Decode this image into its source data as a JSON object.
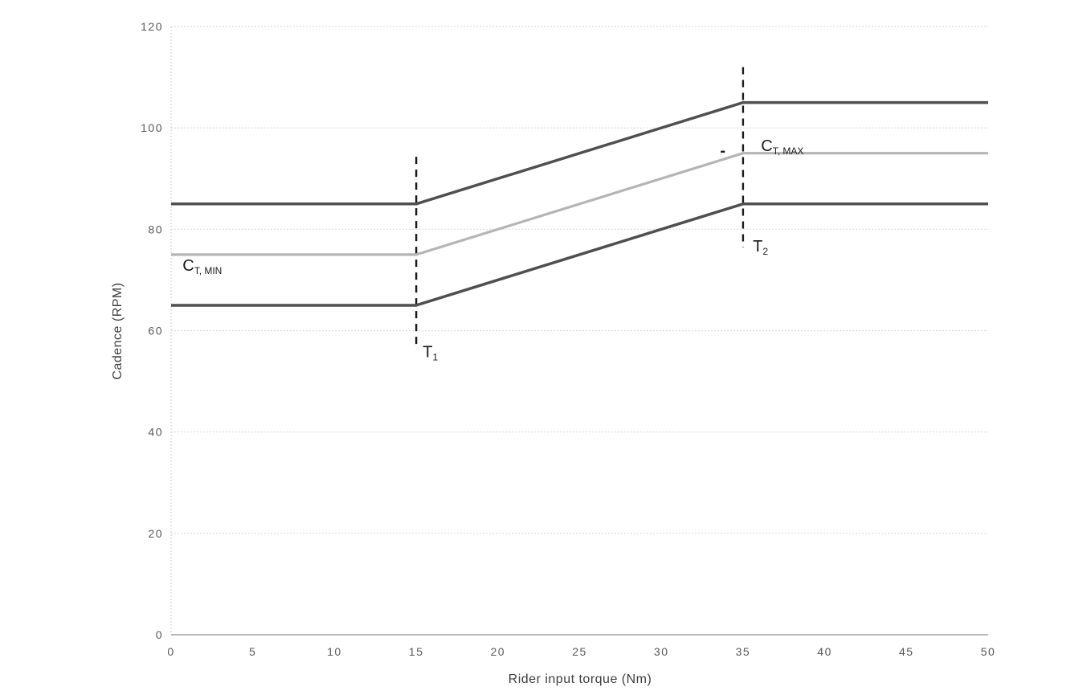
{
  "chart_data": {
    "type": "line",
    "title": "",
    "xlabel": "Rider input torque (Nm)",
    "ylabel": "Cadence (RPM)",
    "xlim": [
      0,
      50
    ],
    "ylim": [
      0,
      120
    ],
    "xticks": [
      0,
      5,
      10,
      15,
      20,
      25,
      30,
      35,
      40,
      45,
      50
    ],
    "yticks": [
      0,
      20,
      40,
      60,
      80,
      100,
      120
    ],
    "grid": "horizontal",
    "legend": "none",
    "series": [
      {
        "name": "upper-cadence-limit",
        "color": "#4f4f4f",
        "width": 3.5,
        "points": [
          [
            0,
            85
          ],
          [
            15,
            85
          ],
          [
            35,
            105
          ],
          [
            50,
            105
          ]
        ]
      },
      {
        "name": "target-cadence",
        "color": "#b5b5b5",
        "width": 3.2,
        "points": [
          [
            0,
            75
          ],
          [
            15,
            75
          ],
          [
            35,
            95
          ],
          [
            50,
            95
          ]
        ]
      },
      {
        "name": "lower-cadence-limit",
        "color": "#4f4f4f",
        "width": 3.5,
        "points": [
          [
            0,
            65
          ],
          [
            15,
            65
          ],
          [
            35,
            85
          ],
          [
            50,
            85
          ]
        ]
      }
    ],
    "guides": [
      {
        "name": "t1-threshold-line",
        "x": 15,
        "y_from": 57,
        "y_to": 94.3
      },
      {
        "name": "t2-threshold-line",
        "x": 35,
        "y_from": 76.4,
        "y_to": 112
      }
    ],
    "annotations": [
      {
        "name": "ct-min-label",
        "main": "C",
        "sub": "T, MIN",
        "x": 0.7,
        "y": 71.8,
        "bold": false
      },
      {
        "name": "ct-max-label",
        "main": "C",
        "sub": "T, MAX",
        "x": 36.1,
        "y": 95.4,
        "bold": false
      },
      {
        "name": "t1-label",
        "main": "T",
        "sub": "1",
        "x": 15.4,
        "y": 54.8,
        "bold": false
      },
      {
        "name": "t2-label",
        "main": "T",
        "sub": "2",
        "x": 35.6,
        "y": 75.6,
        "bold": false
      },
      {
        "name": "dash-mark",
        "main": "-",
        "sub": "",
        "x": 33.6,
        "y": 94.5,
        "bold": true
      }
    ],
    "style": {
      "grid_color": "#dcdcdc",
      "axis_line_color": "#a3a3a3",
      "tick_label_color": "#595959",
      "guide_color": "#1a1a1a",
      "background": "#ffffff"
    }
  }
}
